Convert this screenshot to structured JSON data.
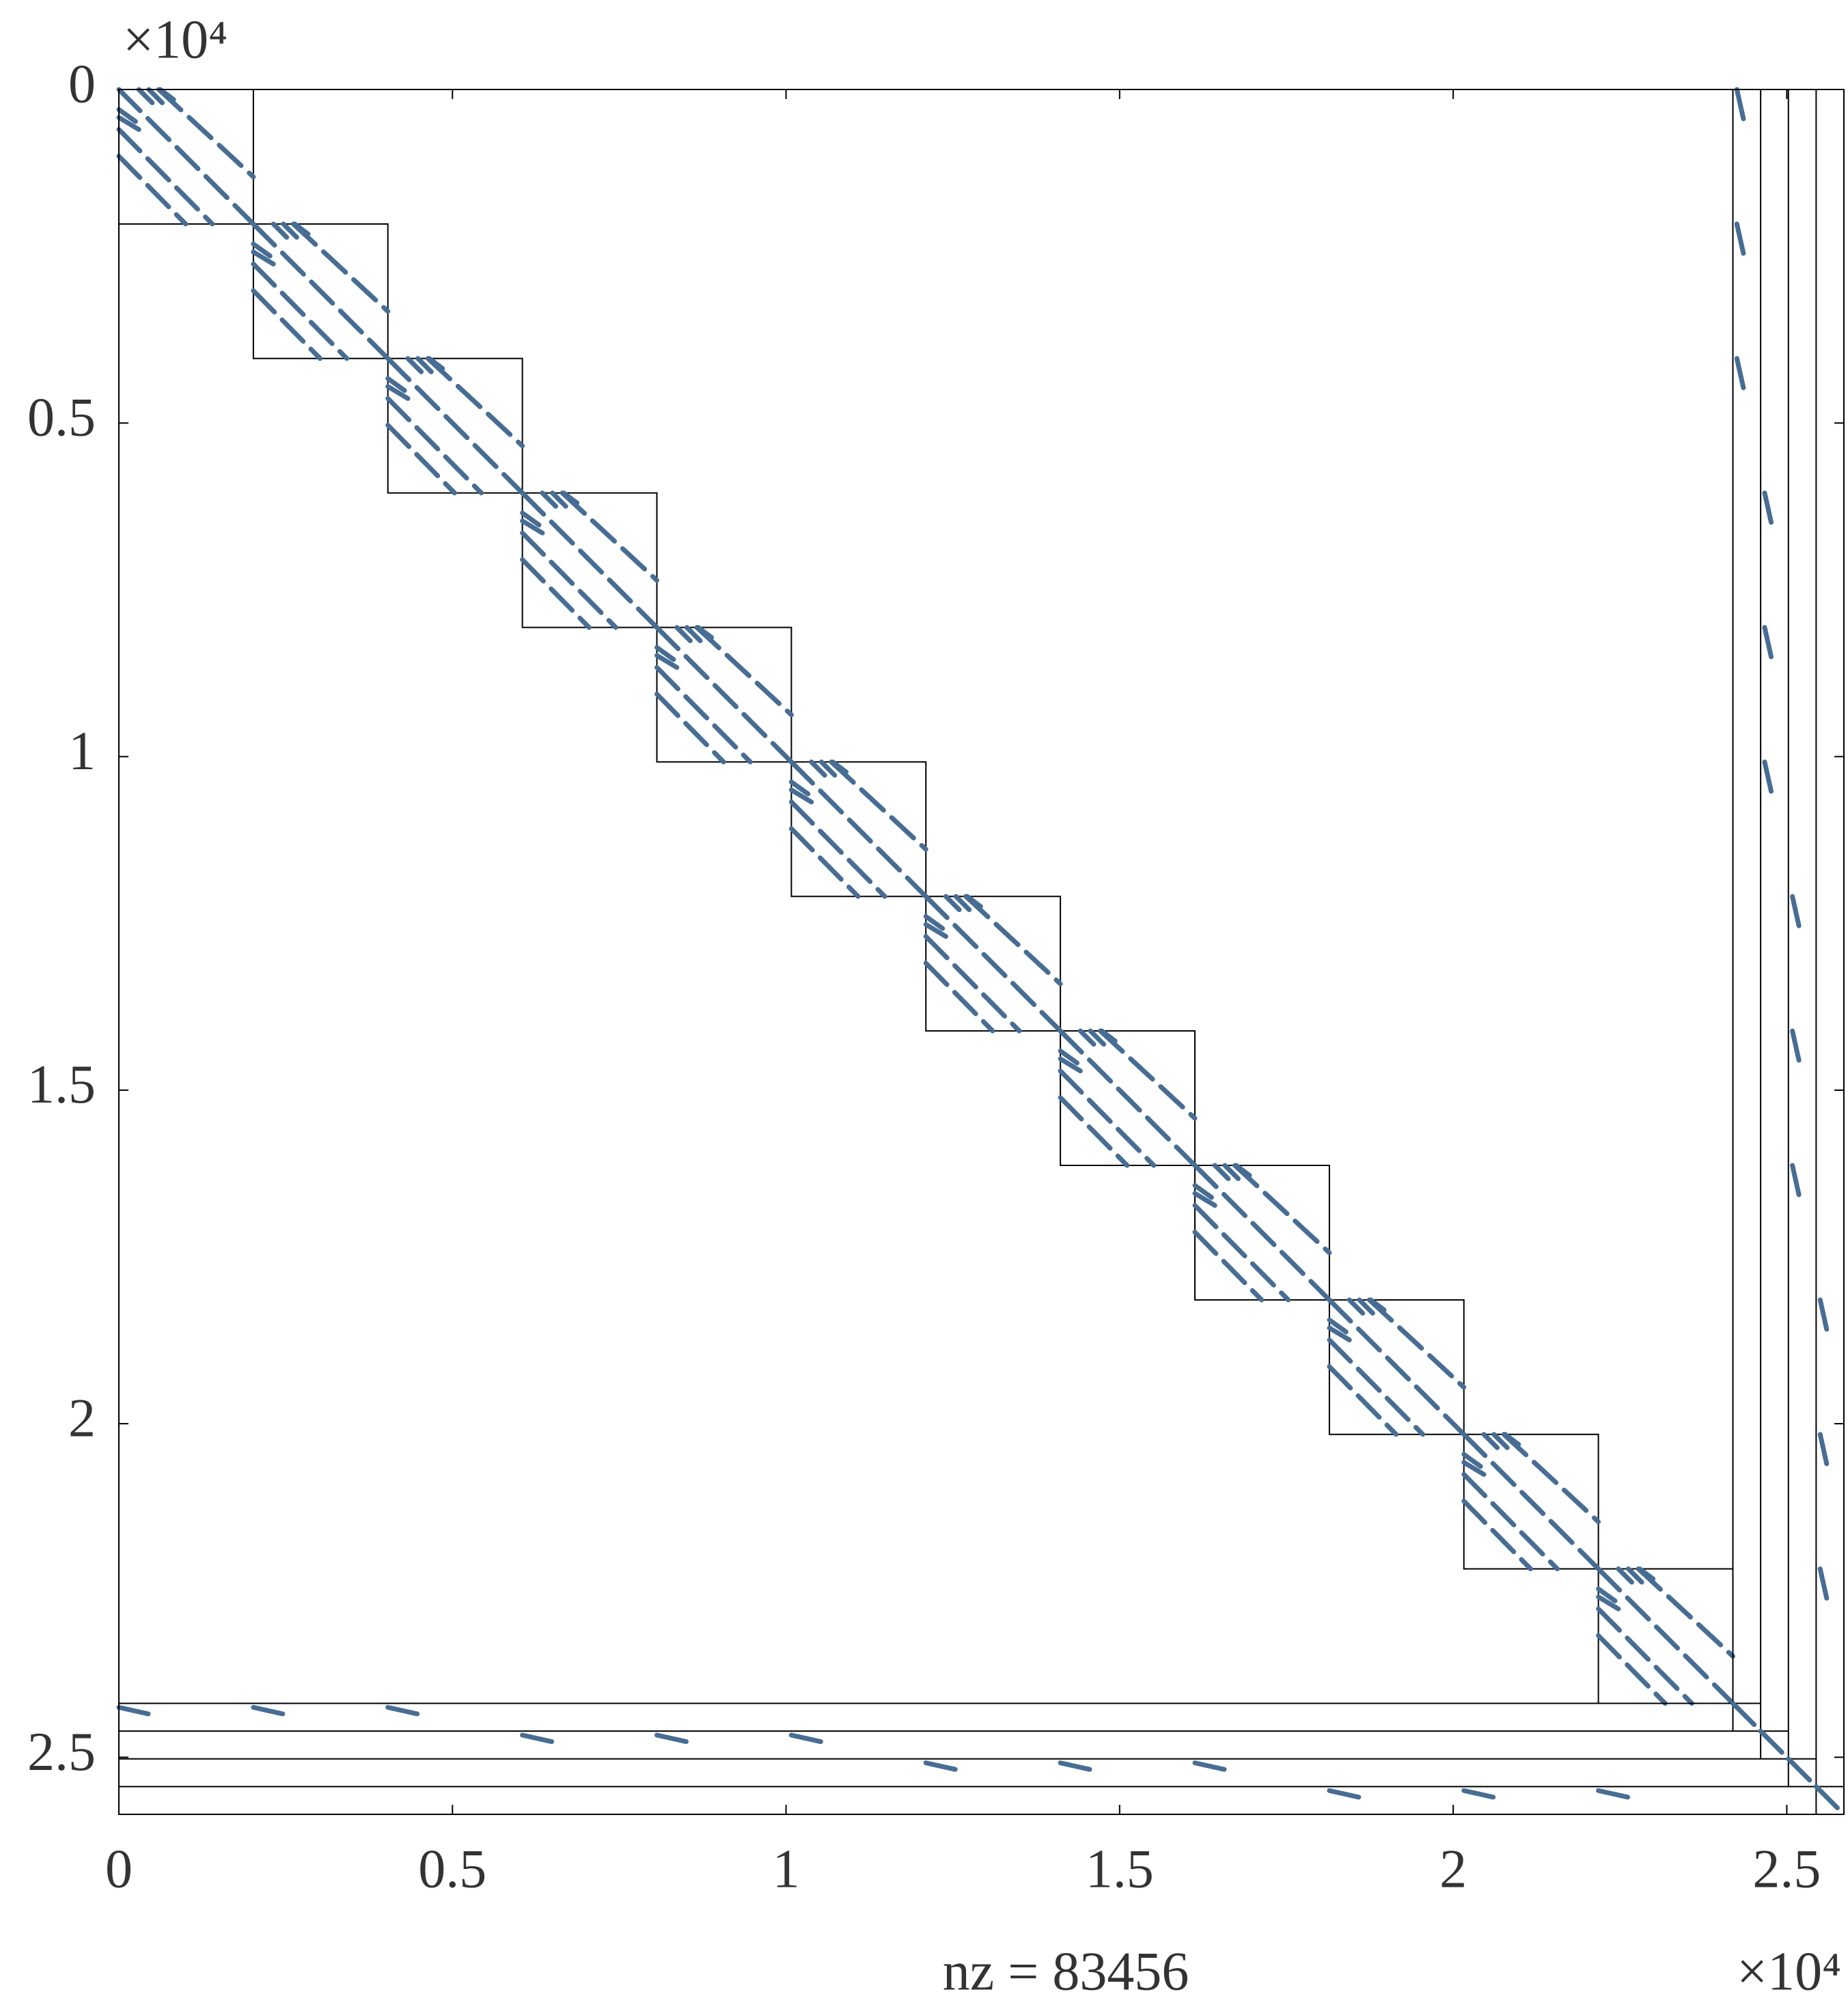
{
  "chart_data": {
    "type": "spy",
    "xlabel": "nz = 83456",
    "x_exponent": "×10⁴",
    "y_exponent": "×10⁴",
    "xlim": [
      0,
      25856
    ],
    "ylim": [
      0,
      25856
    ],
    "y_reversed": true,
    "grid": false,
    "color": "#476d94",
    "xticks": [
      0,
      {
        "value": 5000,
        "label": "0.5"
      },
      {
        "value": 10000,
        "label": "1"
      },
      {
        "value": 15000,
        "label": "1.5"
      },
      {
        "value": 20000,
        "label": "2"
      },
      {
        "value": 25000,
        "label": "2.5"
      }
    ],
    "yticks": [
      0,
      {
        "value": 5000,
        "label": "0.5"
      },
      {
        "value": 10000,
        "label": "1"
      },
      {
        "value": 15000,
        "label": "1.5"
      },
      {
        "value": 20000,
        "label": "2"
      },
      {
        "value": 25000,
        "label": "2.5"
      }
    ],
    "blocks": [
      [
        0,
        2016
      ],
      [
        2016,
        4032
      ],
      [
        4032,
        6048
      ],
      [
        6048,
        8064
      ],
      [
        8064,
        10080
      ],
      [
        10080,
        12096
      ],
      [
        12096,
        14112
      ],
      [
        14112,
        16128
      ],
      [
        16128,
        18144
      ],
      [
        18144,
        20160
      ],
      [
        20160,
        22176
      ],
      [
        22176,
        24192
      ]
    ],
    "block_pattern": [
      [
        0,
        0,
        2016,
        2016
      ],
      [
        600,
        0,
        2016,
        1310
      ],
      [
        0,
        600,
        1400,
        2016
      ],
      [
        0,
        1000,
        1000,
        2016
      ],
      [
        300,
        0,
        500,
        200
      ],
      [
        450,
        0,
        650,
        200
      ],
      [
        620,
        0,
        820,
        150
      ],
      [
        0,
        300,
        250,
        480
      ],
      [
        0,
        420,
        300,
        600
      ]
    ],
    "partitions": [
      24192,
      24608,
      25024,
      25440
    ],
    "coupling_segments": [
      [
        0,
        24252,
        450,
        24352
      ],
      [
        2016,
        24252,
        2466,
        24352
      ],
      [
        4032,
        24252,
        4482,
        24352
      ],
      [
        6048,
        24668,
        6498,
        24768
      ],
      [
        8064,
        24668,
        8514,
        24768
      ],
      [
        10080,
        24668,
        10530,
        24768
      ],
      [
        12096,
        25084,
        12546,
        25184
      ],
      [
        14112,
        25084,
        14562,
        25184
      ],
      [
        16128,
        25084,
        16578,
        25184
      ],
      [
        18144,
        25500,
        18594,
        25600
      ],
      [
        20160,
        25500,
        20610,
        25600
      ],
      [
        22176,
        25500,
        22626,
        25600
      ],
      [
        24252,
        0,
        24352,
        450
      ],
      [
        24252,
        2016,
        24352,
        2466
      ],
      [
        24252,
        4032,
        24352,
        4482
      ],
      [
        24668,
        6048,
        24768,
        6498
      ],
      [
        24668,
        8064,
        24768,
        8514
      ],
      [
        24668,
        10080,
        24768,
        10530
      ],
      [
        25084,
        12096,
        25184,
        12546
      ],
      [
        25084,
        14112,
        25184,
        14562
      ],
      [
        25084,
        16128,
        25184,
        16578
      ],
      [
        25500,
        18144,
        25600,
        18594
      ],
      [
        25500,
        20160,
        25600,
        20610
      ],
      [
        25500,
        22176,
        25600,
        22626
      ],
      [
        24192,
        24192,
        24608,
        24608
      ],
      [
        24608,
        24608,
        25024,
        25024
      ],
      [
        25024,
        25024,
        25440,
        25440
      ],
      [
        25440,
        25440,
        25856,
        25856
      ]
    ]
  }
}
